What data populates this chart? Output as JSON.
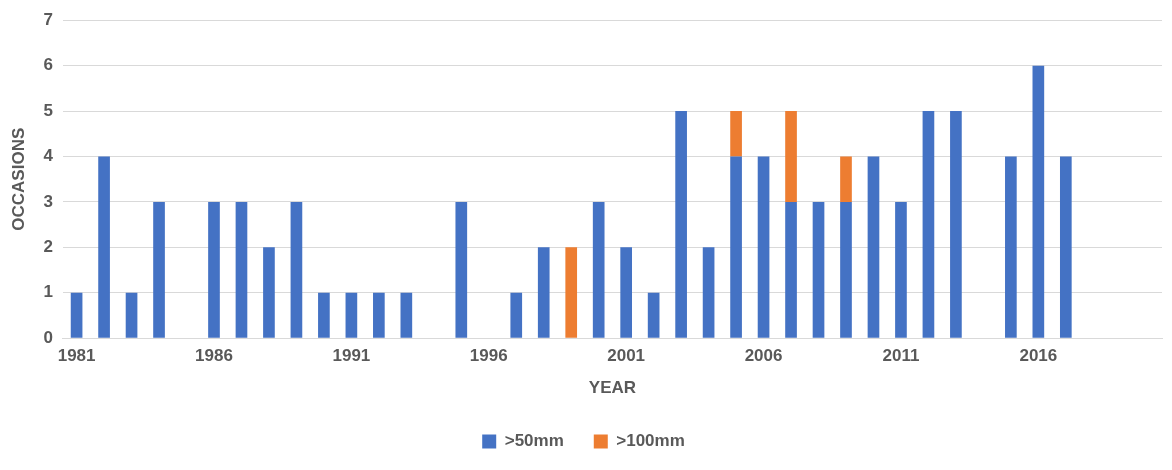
{
  "chart_data": {
    "type": "bar",
    "stacked": true,
    "xlabel": "YEAR",
    "ylabel": "OCCASIONS",
    "categories": [
      "1981",
      null,
      null,
      null,
      null,
      "1986",
      null,
      null,
      null,
      null,
      "1991",
      null,
      null,
      null,
      null,
      "1996",
      null,
      null,
      null,
      null,
      "2001",
      null,
      null,
      null,
      null,
      "2006",
      null,
      null,
      null,
      null,
      "2011",
      null,
      null,
      null,
      null,
      "2016",
      null,
      null,
      null,
      null
    ],
    "series": [
      {
        "name": ">50mm",
        "color": "#4472c4",
        "values": [
          1,
          4,
          1,
          3,
          0,
          3,
          3,
          2,
          3,
          1,
          1,
          1,
          1,
          0,
          3,
          0,
          1,
          2,
          0,
          3,
          2,
          1,
          5,
          2,
          4,
          4,
          3,
          3,
          3,
          4,
          3,
          5,
          5,
          0,
          4,
          6,
          4,
          0,
          0,
          0
        ]
      },
      {
        "name": ">100mm",
        "color": "#ed7d31",
        "values": [
          0,
          0,
          0,
          0,
          0,
          0,
          0,
          0,
          0,
          0,
          0,
          0,
          0,
          0,
          0,
          0,
          0,
          0,
          2,
          0,
          0,
          0,
          0,
          0,
          1,
          0,
          2,
          0,
          1,
          0,
          0,
          0,
          0,
          0,
          0,
          0,
          0,
          0,
          0,
          0
        ]
      }
    ],
    "ylim": [
      0,
      7
    ],
    "yticks": [
      0,
      1,
      2,
      3,
      4,
      5,
      6,
      7
    ],
    "grid": "y",
    "legend": "bottom"
  }
}
